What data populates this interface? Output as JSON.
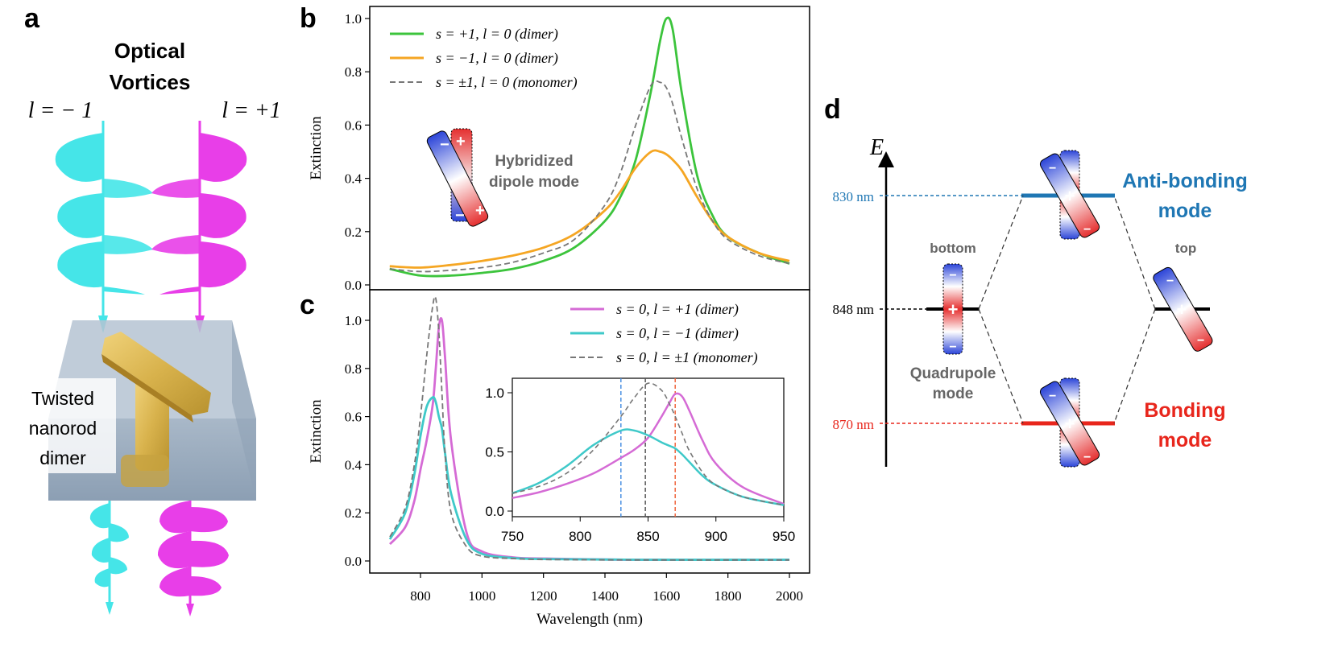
{
  "panels": {
    "a": {
      "letter": "a",
      "title_line1": "Optical",
      "title_line2": "Vortices",
      "left_label": "l = − 1",
      "right_label": "l = +1",
      "box_label_lines": [
        "Twisted",
        "nanorod",
        "dimer"
      ]
    },
    "b": {
      "letter": "b",
      "inset_label_lines": [
        "Hybridized",
        "dipole mode"
      ]
    },
    "c": {
      "letter": "c"
    },
    "d": {
      "letter": "d",
      "energy_axis": "E",
      "levels": [
        {
          "label": "830 nm",
          "color": "#1f77b4"
        },
        {
          "label": "848 nm",
          "color": "#000000"
        },
        {
          "label": "870 nm",
          "color": "#e8261c"
        }
      ],
      "antibonding_label_lines": [
        "Anti-bonding",
        "mode"
      ],
      "bonding_label_lines": [
        "Bonding",
        "mode"
      ],
      "bottom_label": "bottom",
      "top_label": "top",
      "quadrupole_label_lines": [
        "Quadrupole",
        "mode"
      ]
    }
  },
  "colors": {
    "green": "#3cc43c",
    "orange": "#f5a623",
    "gray_dashed": "#777777",
    "magenta": "#d56bd5",
    "cyan": "#3fc9c9",
    "vortex_cyan": "#45e5e8",
    "vortex_magenta": "#e83ee8",
    "blue_level": "#1f77b4",
    "red_level": "#e8261c"
  },
  "chart_data": [
    {
      "type": "line",
      "panel": "b",
      "ylabel": "Extinction",
      "xlim": [
        700,
        2000
      ],
      "ylim": [
        0,
        1.0
      ],
      "yticks": [
        "0.0",
        "0.2",
        "0.4",
        "0.6",
        "0.8",
        "1.0"
      ],
      "x": [
        700,
        800,
        900,
        1000,
        1100,
        1200,
        1300,
        1400,
        1450,
        1500,
        1550,
        1580,
        1600,
        1620,
        1650,
        1700,
        1750,
        1800,
        1900,
        2000
      ],
      "series": [
        {
          "name": "s = +1, l = 0 (dimer)",
          "color": "#3cc43c",
          "dash": false,
          "values": [
            0.06,
            0.035,
            0.035,
            0.045,
            0.06,
            0.09,
            0.14,
            0.24,
            0.33,
            0.47,
            0.73,
            0.92,
            1.0,
            0.96,
            0.72,
            0.41,
            0.26,
            0.18,
            0.12,
            0.08
          ]
        },
        {
          "name": "s = −1, l = 0 (dimer)",
          "color": "#f5a623",
          "dash": false,
          "values": [
            0.07,
            0.065,
            0.075,
            0.09,
            0.11,
            0.14,
            0.19,
            0.28,
            0.35,
            0.44,
            0.5,
            0.5,
            0.49,
            0.47,
            0.43,
            0.33,
            0.24,
            0.18,
            0.12,
            0.09
          ]
        },
        {
          "name": "s = ±1, l = 0 (monomer)",
          "color": "#777777",
          "dash": true,
          "values": [
            0.06,
            0.05,
            0.055,
            0.065,
            0.085,
            0.12,
            0.17,
            0.3,
            0.42,
            0.6,
            0.75,
            0.76,
            0.74,
            0.68,
            0.55,
            0.36,
            0.24,
            0.17,
            0.11,
            0.08
          ]
        }
      ]
    },
    {
      "type": "line",
      "panel": "c",
      "xlabel": "Wavelength (nm)",
      "ylabel": "Extinction",
      "xticks": [
        "800",
        "1000",
        "1200",
        "1400",
        "1600",
        "1800",
        "2000"
      ],
      "yticks": [
        "0.0",
        "0.2",
        "0.4",
        "0.6",
        "0.8",
        "1.0"
      ],
      "xlim": [
        650,
        2050
      ],
      "ylim": [
        -0.05,
        1.1
      ],
      "x": [
        700,
        750,
        780,
        800,
        820,
        840,
        850,
        860,
        870,
        880,
        900,
        950,
        1000,
        1100,
        1200,
        1500,
        2000
      ],
      "series": [
        {
          "name": "s = 0, l = +1 (dimer)",
          "color": "#d56bd5",
          "dash": false,
          "values": [
            0.07,
            0.14,
            0.25,
            0.38,
            0.5,
            0.65,
            0.8,
            0.97,
            1.0,
            0.85,
            0.5,
            0.12,
            0.04,
            0.015,
            0.01,
            0.005,
            0.005
          ]
        },
        {
          "name": "s = 0, l = −1 (dimer)",
          "color": "#3fc9c9",
          "dash": false,
          "values": [
            0.09,
            0.2,
            0.36,
            0.52,
            0.64,
            0.68,
            0.66,
            0.6,
            0.55,
            0.45,
            0.28,
            0.09,
            0.03,
            0.012,
            0.008,
            0.005,
            0.005
          ]
        },
        {
          "name": "s = 0, l = ±1 (monomer)",
          "color": "#777777",
          "dash": true,
          "values": [
            0.1,
            0.22,
            0.4,
            0.6,
            0.85,
            1.06,
            1.09,
            0.95,
            0.7,
            0.45,
            0.2,
            0.06,
            0.02,
            0.01,
            0.006,
            0.004,
            0.004
          ]
        }
      ]
    },
    {
      "type": "line",
      "panel": "c-inset",
      "xticks": [
        "750",
        "800",
        "850",
        "900",
        "950"
      ],
      "yticks": [
        "0.0",
        "0.5",
        "1.0"
      ],
      "xlim": [
        750,
        950
      ],
      "ylim": [
        -0.05,
        1.15
      ],
      "x": [
        750,
        770,
        790,
        810,
        830,
        840,
        850,
        860,
        866,
        870,
        875,
        880,
        890,
        900,
        920,
        950
      ],
      "series": [
        {
          "color": "#d56bd5",
          "dash": false,
          "values": [
            0.11,
            0.16,
            0.23,
            0.32,
            0.45,
            0.52,
            0.62,
            0.8,
            0.92,
            0.99,
            0.97,
            0.86,
            0.6,
            0.4,
            0.2,
            0.06
          ]
        },
        {
          "color": "#3fc9c9",
          "dash": false,
          "values": [
            0.15,
            0.24,
            0.38,
            0.56,
            0.68,
            0.68,
            0.64,
            0.58,
            0.55,
            0.53,
            0.48,
            0.42,
            0.3,
            0.22,
            0.12,
            0.05
          ]
        },
        {
          "color": "#777777",
          "dash": true,
          "values": [
            0.15,
            0.21,
            0.32,
            0.52,
            0.8,
            0.96,
            1.08,
            1.02,
            0.9,
            0.8,
            0.66,
            0.52,
            0.33,
            0.22,
            0.12,
            0.05
          ]
        }
      ],
      "markers": [
        {
          "x": 830,
          "color": "#4a90e2"
        },
        {
          "x": 848,
          "color": "#555555"
        },
        {
          "x": 870,
          "color": "#f0643c"
        }
      ]
    }
  ]
}
